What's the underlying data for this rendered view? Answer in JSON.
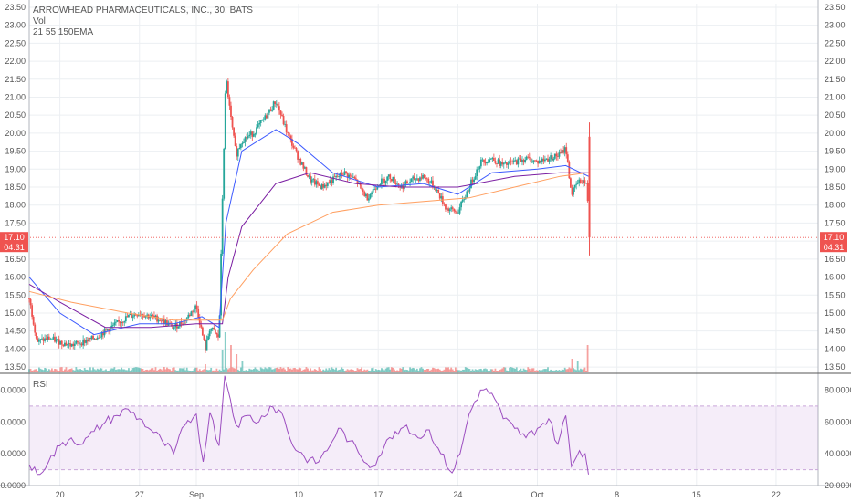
{
  "chart_data": [
    {
      "type": "candlestick",
      "title": "ARROWHEAD PHARMACEUTICALS, INC., 30, BATS",
      "indicators": [
        "Vol",
        "21 55 150EMA"
      ],
      "ylim": [
        13.35,
        23.6
      ],
      "y_ticks": [
        "13.50",
        "14.00",
        "14.50",
        "15.00",
        "15.50",
        "16.00",
        "16.50",
        "17.00",
        "17.50",
        "18.00",
        "18.50",
        "19.00",
        "19.50",
        "20.00",
        "20.50",
        "21.00",
        "21.50",
        "22.00",
        "22.50",
        "23.00",
        "23.50"
      ],
      "x_ticks": [
        {
          "label": "20",
          "day": 20
        },
        {
          "label": "27",
          "day": 27
        },
        {
          "label": "Sep",
          "day": 32
        },
        {
          "label": "10",
          "day": 41
        },
        {
          "label": "17",
          "day": 48
        },
        {
          "label": "24",
          "day": 55
        },
        {
          "label": "Oct",
          "day": 62
        },
        {
          "label": "8",
          "day": 69
        },
        {
          "label": "15",
          "day": 76
        },
        {
          "label": "22",
          "day": 83
        }
      ],
      "xlim_days": [
        17.3,
        86.7
      ],
      "last_price": {
        "value": 17.1,
        "label": "17.10",
        "countdown": "04:31"
      },
      "price_path": [
        {
          "day": 17.3,
          "price": 15.4
        },
        {
          "day": 18.0,
          "price": 14.2
        },
        {
          "day": 19.0,
          "price": 14.3
        },
        {
          "day": 20.0,
          "price": 14.2
        },
        {
          "day": 21.0,
          "price": 14.1
        },
        {
          "day": 22.0,
          "price": 14.2
        },
        {
          "day": 23.0,
          "price": 14.3
        },
        {
          "day": 24.0,
          "price": 14.5
        },
        {
          "day": 25.0,
          "price": 14.7
        },
        {
          "day": 26.0,
          "price": 14.9
        },
        {
          "day": 27.0,
          "price": 15.0
        },
        {
          "day": 28.0,
          "price": 14.9
        },
        {
          "day": 29.0,
          "price": 14.8
        },
        {
          "day": 30.0,
          "price": 14.6
        },
        {
          "day": 31.0,
          "price": 14.8
        },
        {
          "day": 32.0,
          "price": 15.2
        },
        {
          "day": 32.8,
          "price": 14.0
        },
        {
          "day": 33.2,
          "price": 14.6
        },
        {
          "day": 34.0,
          "price": 14.3
        },
        {
          "day": 34.3,
          "price": 18.2
        },
        {
          "day": 34.6,
          "price": 21.6
        },
        {
          "day": 35.0,
          "price": 20.5
        },
        {
          "day": 35.5,
          "price": 19.4
        },
        {
          "day": 36.0,
          "price": 19.8
        },
        {
          "day": 37.0,
          "price": 20.0
        },
        {
          "day": 38.0,
          "price": 20.4
        },
        {
          "day": 39.0,
          "price": 20.9
        },
        {
          "day": 40.0,
          "price": 20.0
        },
        {
          "day": 41.0,
          "price": 19.3
        },
        {
          "day": 42.0,
          "price": 18.7
        },
        {
          "day": 43.0,
          "price": 18.5
        },
        {
          "day": 44.0,
          "price": 18.7
        },
        {
          "day": 45.0,
          "price": 18.9
        },
        {
          "day": 46.0,
          "price": 18.7
        },
        {
          "day": 47.0,
          "price": 18.2
        },
        {
          "day": 48.0,
          "price": 18.6
        },
        {
          "day": 49.0,
          "price": 18.8
        },
        {
          "day": 50.0,
          "price": 18.5
        },
        {
          "day": 51.0,
          "price": 18.7
        },
        {
          "day": 52.0,
          "price": 18.8
        },
        {
          "day": 53.0,
          "price": 18.5
        },
        {
          "day": 54.0,
          "price": 17.9
        },
        {
          "day": 55.0,
          "price": 17.8
        },
        {
          "day": 56.0,
          "price": 18.5
        },
        {
          "day": 57.0,
          "price": 19.2
        },
        {
          "day": 58.0,
          "price": 19.3
        },
        {
          "day": 59.0,
          "price": 19.1
        },
        {
          "day": 60.0,
          "price": 19.2
        },
        {
          "day": 61.0,
          "price": 19.3
        },
        {
          "day": 62.0,
          "price": 19.2
        },
        {
          "day": 63.0,
          "price": 19.3
        },
        {
          "day": 64.0,
          "price": 19.4
        },
        {
          "day": 64.5,
          "price": 19.6
        },
        {
          "day": 65.0,
          "price": 18.3
        },
        {
          "day": 65.5,
          "price": 18.6
        },
        {
          "day": 66.0,
          "price": 18.7
        },
        {
          "day": 66.4,
          "price": 18.5
        },
        {
          "day": 66.5,
          "price": 17.1
        }
      ],
      "volume_scale_max": 100,
      "volume_spikes": [
        {
          "day": 32.8,
          "vol": 9
        },
        {
          "day": 34.3,
          "vol": 24
        },
        {
          "day": 34.6,
          "vol": 44
        },
        {
          "day": 35.0,
          "vol": 30
        },
        {
          "day": 35.5,
          "vol": 20
        },
        {
          "day": 36.0,
          "vol": 12
        },
        {
          "day": 65.0,
          "vol": 15
        },
        {
          "day": 65.5,
          "vol": 12
        },
        {
          "day": 66.4,
          "vol": 30
        }
      ],
      "ema": [
        {
          "name": "21 EMA",
          "color": "#3d5afe",
          "points": [
            {
              "day": 17.3,
              "price": 16.0
            },
            {
              "day": 20,
              "price": 15.0
            },
            {
              "day": 23,
              "price": 14.4
            },
            {
              "day": 27,
              "price": 14.7
            },
            {
              "day": 30,
              "price": 14.7
            },
            {
              "day": 32.5,
              "price": 14.9
            },
            {
              "day": 34,
              "price": 14.6
            },
            {
              "day": 34.6,
              "price": 17.5
            },
            {
              "day": 36,
              "price": 19.5
            },
            {
              "day": 39,
              "price": 20.1
            },
            {
              "day": 41,
              "price": 19.7
            },
            {
              "day": 44,
              "price": 18.9
            },
            {
              "day": 48,
              "price": 18.5
            },
            {
              "day": 52,
              "price": 18.6
            },
            {
              "day": 55,
              "price": 18.3
            },
            {
              "day": 58,
              "price": 18.9
            },
            {
              "day": 62,
              "price": 19.0
            },
            {
              "day": 64.5,
              "price": 19.1
            },
            {
              "day": 66.5,
              "price": 18.8
            }
          ]
        },
        {
          "name": "55 EMA",
          "color": "#7b1fa2",
          "points": [
            {
              "day": 17.3,
              "price": 15.8
            },
            {
              "day": 20,
              "price": 15.3
            },
            {
              "day": 24,
              "price": 14.6
            },
            {
              "day": 28,
              "price": 14.6
            },
            {
              "day": 32,
              "price": 14.7
            },
            {
              "day": 34.3,
              "price": 14.7
            },
            {
              "day": 34.8,
              "price": 16.0
            },
            {
              "day": 36,
              "price": 17.4
            },
            {
              "day": 39,
              "price": 18.6
            },
            {
              "day": 42,
              "price": 18.9
            },
            {
              "day": 46,
              "price": 18.6
            },
            {
              "day": 50,
              "price": 18.5
            },
            {
              "day": 55,
              "price": 18.5
            },
            {
              "day": 60,
              "price": 18.8
            },
            {
              "day": 64,
              "price": 18.9
            },
            {
              "day": 66.5,
              "price": 18.9
            }
          ]
        },
        {
          "name": "150 EMA",
          "color": "#ff9f60",
          "points": [
            {
              "day": 17.3,
              "price": 15.6
            },
            {
              "day": 21,
              "price": 15.3
            },
            {
              "day": 26,
              "price": 15.0
            },
            {
              "day": 30,
              "price": 14.8
            },
            {
              "day": 34.3,
              "price": 14.8
            },
            {
              "day": 35,
              "price": 15.4
            },
            {
              "day": 37,
              "price": 16.2
            },
            {
              "day": 40,
              "price": 17.2
            },
            {
              "day": 44,
              "price": 17.8
            },
            {
              "day": 48,
              "price": 18.0
            },
            {
              "day": 52,
              "price": 18.1
            },
            {
              "day": 56,
              "price": 18.2
            },
            {
              "day": 60,
              "price": 18.5
            },
            {
              "day": 64,
              "price": 18.8
            },
            {
              "day": 66.5,
              "price": 18.9
            }
          ]
        }
      ]
    },
    {
      "type": "line",
      "title": "RSI",
      "ylim": [
        20,
        90
      ],
      "y_ticks": [
        "20.0000",
        "40.0000",
        "60.0000",
        "80.0000"
      ],
      "band": [
        30,
        70
      ],
      "color": "#9c4ec0",
      "points": [
        {
          "day": 17.3,
          "value": 33
        },
        {
          "day": 18,
          "value": 27
        },
        {
          "day": 19,
          "value": 35
        },
        {
          "day": 20,
          "value": 45
        },
        {
          "day": 21,
          "value": 50
        },
        {
          "day": 22,
          "value": 46
        },
        {
          "day": 23,
          "value": 54
        },
        {
          "day": 24,
          "value": 60
        },
        {
          "day": 25,
          "value": 64
        },
        {
          "day": 26,
          "value": 68
        },
        {
          "day": 27,
          "value": 62
        },
        {
          "day": 28,
          "value": 55
        },
        {
          "day": 29,
          "value": 48
        },
        {
          "day": 30,
          "value": 40
        },
        {
          "day": 31,
          "value": 58
        },
        {
          "day": 32,
          "value": 65
        },
        {
          "day": 32.6,
          "value": 35
        },
        {
          "day": 33.2,
          "value": 66
        },
        {
          "day": 34,
          "value": 45
        },
        {
          "day": 34.5,
          "value": 89
        },
        {
          "day": 35,
          "value": 74
        },
        {
          "day": 35.5,
          "value": 58
        },
        {
          "day": 36.5,
          "value": 64
        },
        {
          "day": 37.5,
          "value": 60
        },
        {
          "day": 38.5,
          "value": 70
        },
        {
          "day": 39.5,
          "value": 66
        },
        {
          "day": 40.5,
          "value": 45
        },
        {
          "day": 41.5,
          "value": 38
        },
        {
          "day": 42.5,
          "value": 34
        },
        {
          "day": 43.5,
          "value": 42
        },
        {
          "day": 44.5,
          "value": 56
        },
        {
          "day": 45.5,
          "value": 48
        },
        {
          "day": 46.5,
          "value": 38
        },
        {
          "day": 47.5,
          "value": 32
        },
        {
          "day": 48.5,
          "value": 44
        },
        {
          "day": 49.5,
          "value": 54
        },
        {
          "day": 50.5,
          "value": 58
        },
        {
          "day": 51.5,
          "value": 50
        },
        {
          "day": 52.5,
          "value": 55
        },
        {
          "day": 53.5,
          "value": 40
        },
        {
          "day": 54.5,
          "value": 28
        },
        {
          "day": 55.2,
          "value": 40
        },
        {
          "day": 56,
          "value": 65
        },
        {
          "day": 57,
          "value": 80
        },
        {
          "day": 58,
          "value": 78
        },
        {
          "day": 59,
          "value": 62
        },
        {
          "day": 60,
          "value": 56
        },
        {
          "day": 61,
          "value": 50
        },
        {
          "day": 62,
          "value": 56
        },
        {
          "day": 63,
          "value": 62
        },
        {
          "day": 63.8,
          "value": 46
        },
        {
          "day": 64.5,
          "value": 64
        },
        {
          "day": 65,
          "value": 32
        },
        {
          "day": 65.7,
          "value": 42
        },
        {
          "day": 66.2,
          "value": 40
        },
        {
          "day": 66.5,
          "value": 27
        }
      ]
    }
  ]
}
